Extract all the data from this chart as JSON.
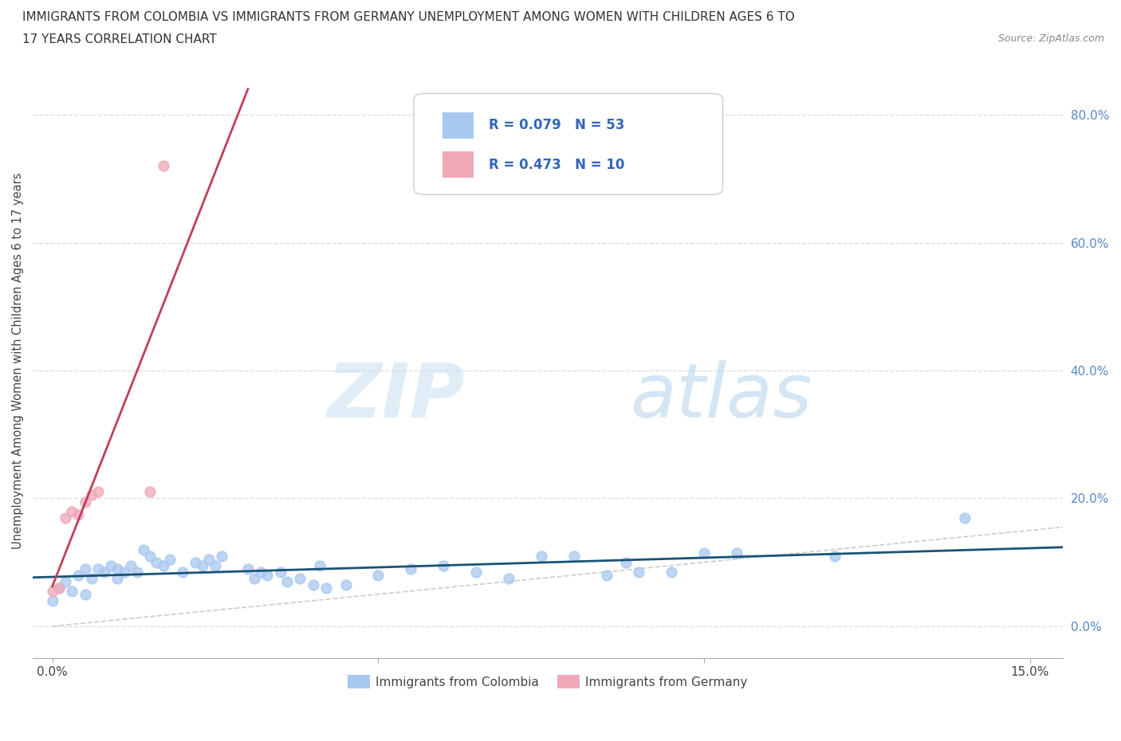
{
  "title_line1": "IMMIGRANTS FROM COLOMBIA VS IMMIGRANTS FROM GERMANY UNEMPLOYMENT AMONG WOMEN WITH CHILDREN AGES 6 TO",
  "title_line2": "17 YEARS CORRELATION CHART",
  "source": "Source: ZipAtlas.com",
  "ylabel": "Unemployment Among Women with Children Ages 6 to 17 years",
  "xlim": [
    -0.003,
    0.155
  ],
  "ylim": [
    -0.05,
    0.88
  ],
  "yticks": [
    0.0,
    0.2,
    0.4,
    0.6,
    0.8
  ],
  "ytick_labels": [
    "0.0%",
    "20.0%",
    "40.0%",
    "60.0%",
    "80.0%"
  ],
  "xticks": [
    0.0,
    0.05,
    0.1,
    0.15
  ],
  "xtick_labels": [
    "0.0%",
    "",
    "",
    "15.0%"
  ],
  "r_colombia": 0.079,
  "n_colombia": 53,
  "r_germany": 0.473,
  "n_germany": 10,
  "colombia_color": "#a8c8f0",
  "germany_color": "#f0a8b8",
  "regression_colombia_color": "#1a5276",
  "regression_germany_color": "#c0405a",
  "diagonal_color": "#cccccc",
  "colombia_scatter": [
    [
      0.0,
      0.04
    ],
    [
      0.001,
      0.06
    ],
    [
      0.002,
      0.07
    ],
    [
      0.003,
      0.055
    ],
    [
      0.004,
      0.08
    ],
    [
      0.005,
      0.09
    ],
    [
      0.005,
      0.05
    ],
    [
      0.006,
      0.075
    ],
    [
      0.007,
      0.09
    ],
    [
      0.008,
      0.085
    ],
    [
      0.009,
      0.095
    ],
    [
      0.01,
      0.075
    ],
    [
      0.01,
      0.09
    ],
    [
      0.011,
      0.085
    ],
    [
      0.012,
      0.095
    ],
    [
      0.013,
      0.085
    ],
    [
      0.014,
      0.12
    ],
    [
      0.015,
      0.11
    ],
    [
      0.016,
      0.1
    ],
    [
      0.017,
      0.095
    ],
    [
      0.018,
      0.105
    ],
    [
      0.02,
      0.085
    ],
    [
      0.022,
      0.1
    ],
    [
      0.023,
      0.095
    ],
    [
      0.024,
      0.105
    ],
    [
      0.025,
      0.095
    ],
    [
      0.026,
      0.11
    ],
    [
      0.03,
      0.09
    ],
    [
      0.031,
      0.075
    ],
    [
      0.032,
      0.085
    ],
    [
      0.033,
      0.08
    ],
    [
      0.035,
      0.085
    ],
    [
      0.036,
      0.07
    ],
    [
      0.038,
      0.075
    ],
    [
      0.04,
      0.065
    ],
    [
      0.041,
      0.095
    ],
    [
      0.042,
      0.06
    ],
    [
      0.045,
      0.065
    ],
    [
      0.05,
      0.08
    ],
    [
      0.055,
      0.09
    ],
    [
      0.06,
      0.095
    ],
    [
      0.065,
      0.085
    ],
    [
      0.07,
      0.075
    ],
    [
      0.075,
      0.11
    ],
    [
      0.08,
      0.11
    ],
    [
      0.085,
      0.08
    ],
    [
      0.088,
      0.1
    ],
    [
      0.09,
      0.085
    ],
    [
      0.095,
      0.085
    ],
    [
      0.1,
      0.115
    ],
    [
      0.105,
      0.115
    ],
    [
      0.12,
      0.11
    ],
    [
      0.14,
      0.17
    ]
  ],
  "germany_scatter": [
    [
      0.0,
      0.055
    ],
    [
      0.001,
      0.06
    ],
    [
      0.002,
      0.17
    ],
    [
      0.003,
      0.18
    ],
    [
      0.004,
      0.175
    ],
    [
      0.005,
      0.195
    ],
    [
      0.006,
      0.205
    ],
    [
      0.007,
      0.21
    ],
    [
      0.015,
      0.21
    ],
    [
      0.017,
      0.72
    ]
  ],
  "watermark_zip": "ZIP",
  "watermark_atlas": "atlas",
  "background_color": "#ffffff",
  "grid_color": "#dddddd",
  "legend_label_col": "Immigrants from Colombia",
  "legend_label_ger": "Immigrants from Germany"
}
